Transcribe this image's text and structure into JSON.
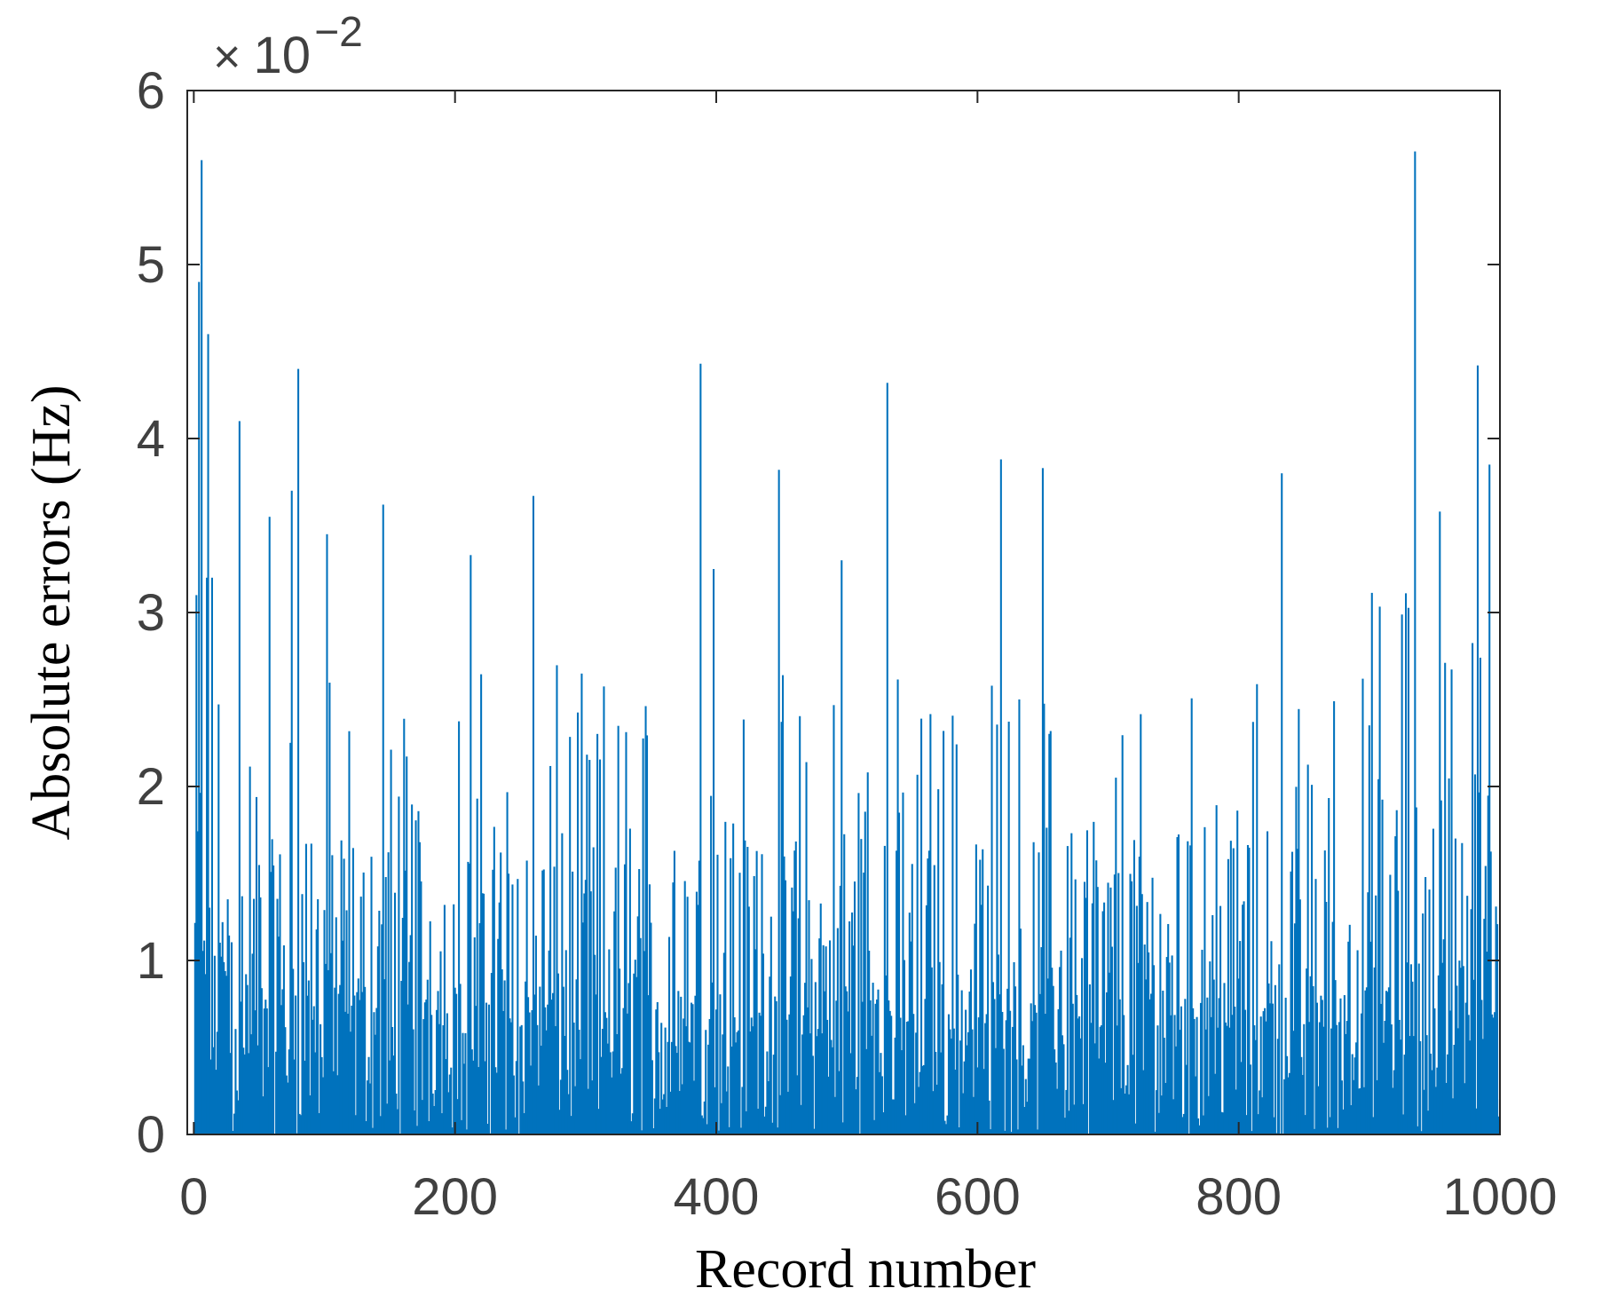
{
  "chart_data": {
    "type": "bar",
    "xlabel": "Record number",
    "ylabel": "Absolute errors (Hz)",
    "y_exponent_label": {
      "times": "×",
      "base": "10",
      "power": "−2"
    },
    "xlim": [
      -5,
      1000
    ],
    "ylim": [
      0,
      6
    ],
    "xticks": [
      0,
      200,
      400,
      600,
      800,
      1000
    ],
    "yticks": [
      0,
      1,
      2,
      3,
      4,
      5,
      6
    ],
    "xtick_labels": [
      "0",
      "200",
      "400",
      "600",
      "800",
      "1000"
    ],
    "ytick_labels": [
      "0",
      "1",
      "2",
      "3",
      "4",
      "5",
      "6"
    ],
    "bar_color": "#0072BD",
    "series": [
      {
        "x_start": 1,
        "x_step": 1,
        "count": 1000,
        "values_approx_peaks": [
          {
            "x": 2,
            "y": 3.1
          },
          {
            "x": 4,
            "y": 4.9
          },
          {
            "x": 6,
            "y": 5.6
          },
          {
            "x": 11,
            "y": 4.6
          },
          {
            "x": 35,
            "y": 4.1
          },
          {
            "x": 58,
            "y": 3.55
          },
          {
            "x": 75,
            "y": 3.7
          },
          {
            "x": 80,
            "y": 4.4
          },
          {
            "x": 102,
            "y": 3.45
          },
          {
            "x": 145,
            "y": 3.62
          },
          {
            "x": 212,
            "y": 3.33
          },
          {
            "x": 260,
            "y": 3.67
          },
          {
            "x": 388,
            "y": 4.43
          },
          {
            "x": 398,
            "y": 3.25
          },
          {
            "x": 448,
            "y": 3.82
          },
          {
            "x": 496,
            "y": 3.3
          },
          {
            "x": 531,
            "y": 4.32
          },
          {
            "x": 618,
            "y": 3.88
          },
          {
            "x": 650,
            "y": 3.83
          },
          {
            "x": 833,
            "y": 3.8
          },
          {
            "x": 935,
            "y": 5.65
          },
          {
            "x": 954,
            "y": 3.58
          },
          {
            "x": 983,
            "y": 4.42
          },
          {
            "x": 992,
            "y": 3.85
          }
        ]
      }
    ]
  }
}
